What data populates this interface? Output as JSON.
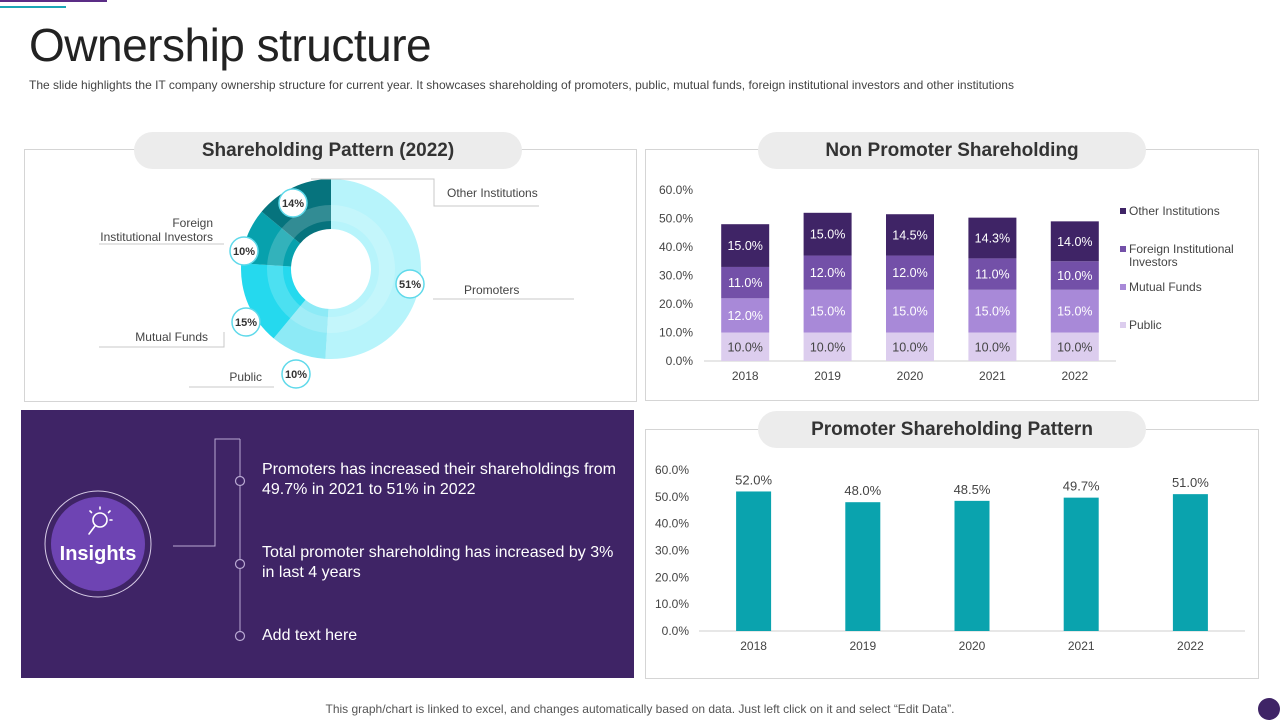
{
  "page": {
    "title": "Ownership structure",
    "subtitle": "The slide highlights the IT company ownership structure for current year. It showcases shareholding of promoters, public, mutual funds, foreign institutional investors and other institutions",
    "footer": "This graph/chart is linked to excel, and changes automatically based on data. Just left click on it and select “Edit Data”."
  },
  "panels": {
    "donut_title": "Shareholding Pattern (2022)",
    "stacked_title": "Non Promoter Shareholding",
    "promoter_title": "Promoter Shareholding Pattern"
  },
  "insights": {
    "label": "Insights",
    "items": [
      "Promoters has increased their shareholdings from 49.7% in 2021 to 51% in 2022",
      "Total promoter shareholding has increased by 3% in last 4 years",
      "Add text here"
    ]
  },
  "colors": {
    "purple_dark": "#3f2466",
    "other_institutions": "#3f2466",
    "foreign_institutional": "#7350a8",
    "mutual_funds": "#a889d8",
    "public": "#dccdee",
    "teal_bar": "#0aa3ae",
    "donut_promoters": "#b7f4fb",
    "donut_public": "#8deaf6",
    "donut_mutual": "#25d9ee",
    "donut_foreign": "#07a1ad",
    "donut_other": "#06737d"
  },
  "chart_data": [
    {
      "type": "pie",
      "title": "Shareholding Pattern (2022)",
      "categories": [
        "Promoters",
        "Public",
        "Mutual Funds",
        "Foreign Institutional Investors",
        "Other Institutions"
      ],
      "values": [
        51,
        10,
        15,
        10,
        14
      ],
      "value_labels": [
        "51%",
        "10%",
        "15%",
        "10%",
        "14%"
      ],
      "label_lines": {
        "Promoters": "Promoters",
        "Public": "Public",
        "Mutual Funds": "Mutual Funds",
        "Foreign Institutional Investors": [
          "Foreign",
          "Institutional Investors"
        ],
        "Other Institutions": "Other Institutions"
      }
    },
    {
      "type": "bar",
      "stacked": true,
      "title": "Non Promoter Shareholding",
      "categories": [
        "2018",
        "2019",
        "2020",
        "2021",
        "2022"
      ],
      "series": [
        {
          "name": "Public",
          "values": [
            10.0,
            10.0,
            10.0,
            10.0,
            10.0
          ]
        },
        {
          "name": "Mutual Funds",
          "values": [
            12.0,
            15.0,
            15.0,
            15.0,
            15.0
          ]
        },
        {
          "name": "Foreign Institutional Investors",
          "values": [
            11.0,
            12.0,
            12.0,
            11.0,
            10.0
          ]
        },
        {
          "name": "Other Institutions",
          "values": [
            15.0,
            15.0,
            14.5,
            14.3,
            14.0
          ]
        }
      ],
      "legend_labels": [
        "Other Institutions",
        [
          "Foreign Institutional",
          "Investors"
        ],
        "Mutual Funds",
        "Public"
      ],
      "yticks": [
        "0.0%",
        "10.0%",
        "20.0%",
        "30.0%",
        "40.0%",
        "50.0%",
        "60.0%"
      ],
      "ylim": [
        0,
        60
      ],
      "legend": "right"
    },
    {
      "type": "bar",
      "title": "Promoter Shareholding Pattern",
      "categories": [
        "2018",
        "2019",
        "2020",
        "2021",
        "2022"
      ],
      "values": [
        52.0,
        48.0,
        48.5,
        49.7,
        51.0
      ],
      "value_labels": [
        "52.0%",
        "48.0%",
        "48.5%",
        "49.7%",
        "51.0%"
      ],
      "yticks": [
        "0.0%",
        "10.0%",
        "20.0%",
        "30.0%",
        "40.0%",
        "50.0%",
        "60.0%"
      ],
      "ylim": [
        0,
        60
      ]
    }
  ]
}
